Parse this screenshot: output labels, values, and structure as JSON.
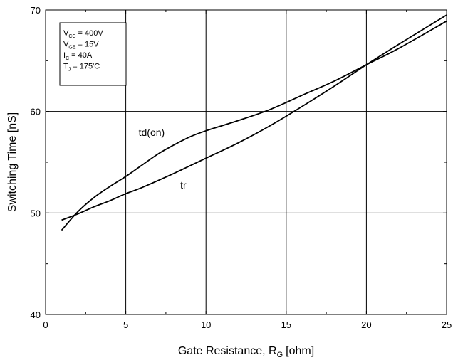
{
  "chart_data": {
    "type": "line",
    "xlabel": "Gate Resistance, R",
    "xlabel_sub": "G",
    "xlabel_unit": "[ohm]",
    "ylabel": "Switching Time [nS]",
    "xlim": [
      0,
      25
    ],
    "ylim": [
      40,
      70
    ],
    "x_ticks": [
      0,
      5,
      10,
      15,
      20,
      25
    ],
    "y_ticks": [
      40,
      50,
      60,
      70
    ],
    "grid": true,
    "conditions": [
      {
        "main": "V",
        "sub": "CC",
        "rest": " = 400V"
      },
      {
        "main": "V",
        "sub": "GE",
        "rest": " = 15V"
      },
      {
        "main": "I",
        "sub": "C",
        "rest": " = 40A"
      },
      {
        "main": "T",
        "sub": "J",
        "rest": " = 175'C"
      }
    ],
    "series": [
      {
        "name": "td(on)",
        "x": [
          1,
          2,
          3,
          4,
          5,
          6,
          7,
          8,
          9,
          10,
          12,
          14,
          16,
          18,
          20,
          22,
          25
        ],
        "y": [
          48.3,
          50.1,
          51.5,
          52.6,
          53.6,
          54.7,
          55.8,
          56.7,
          57.5,
          58.1,
          59.1,
          60.2,
          61.6,
          63.0,
          64.6,
          66.2,
          68.9
        ]
      },
      {
        "name": "tr",
        "x": [
          1,
          2,
          3,
          4,
          5,
          6,
          8,
          10,
          12,
          14,
          16,
          18,
          20,
          22,
          25
        ],
        "y": [
          49.3,
          49.9,
          50.6,
          51.2,
          51.9,
          52.5,
          53.9,
          55.4,
          56.9,
          58.6,
          60.5,
          62.5,
          64.6,
          66.6,
          69.5
        ]
      }
    ]
  }
}
